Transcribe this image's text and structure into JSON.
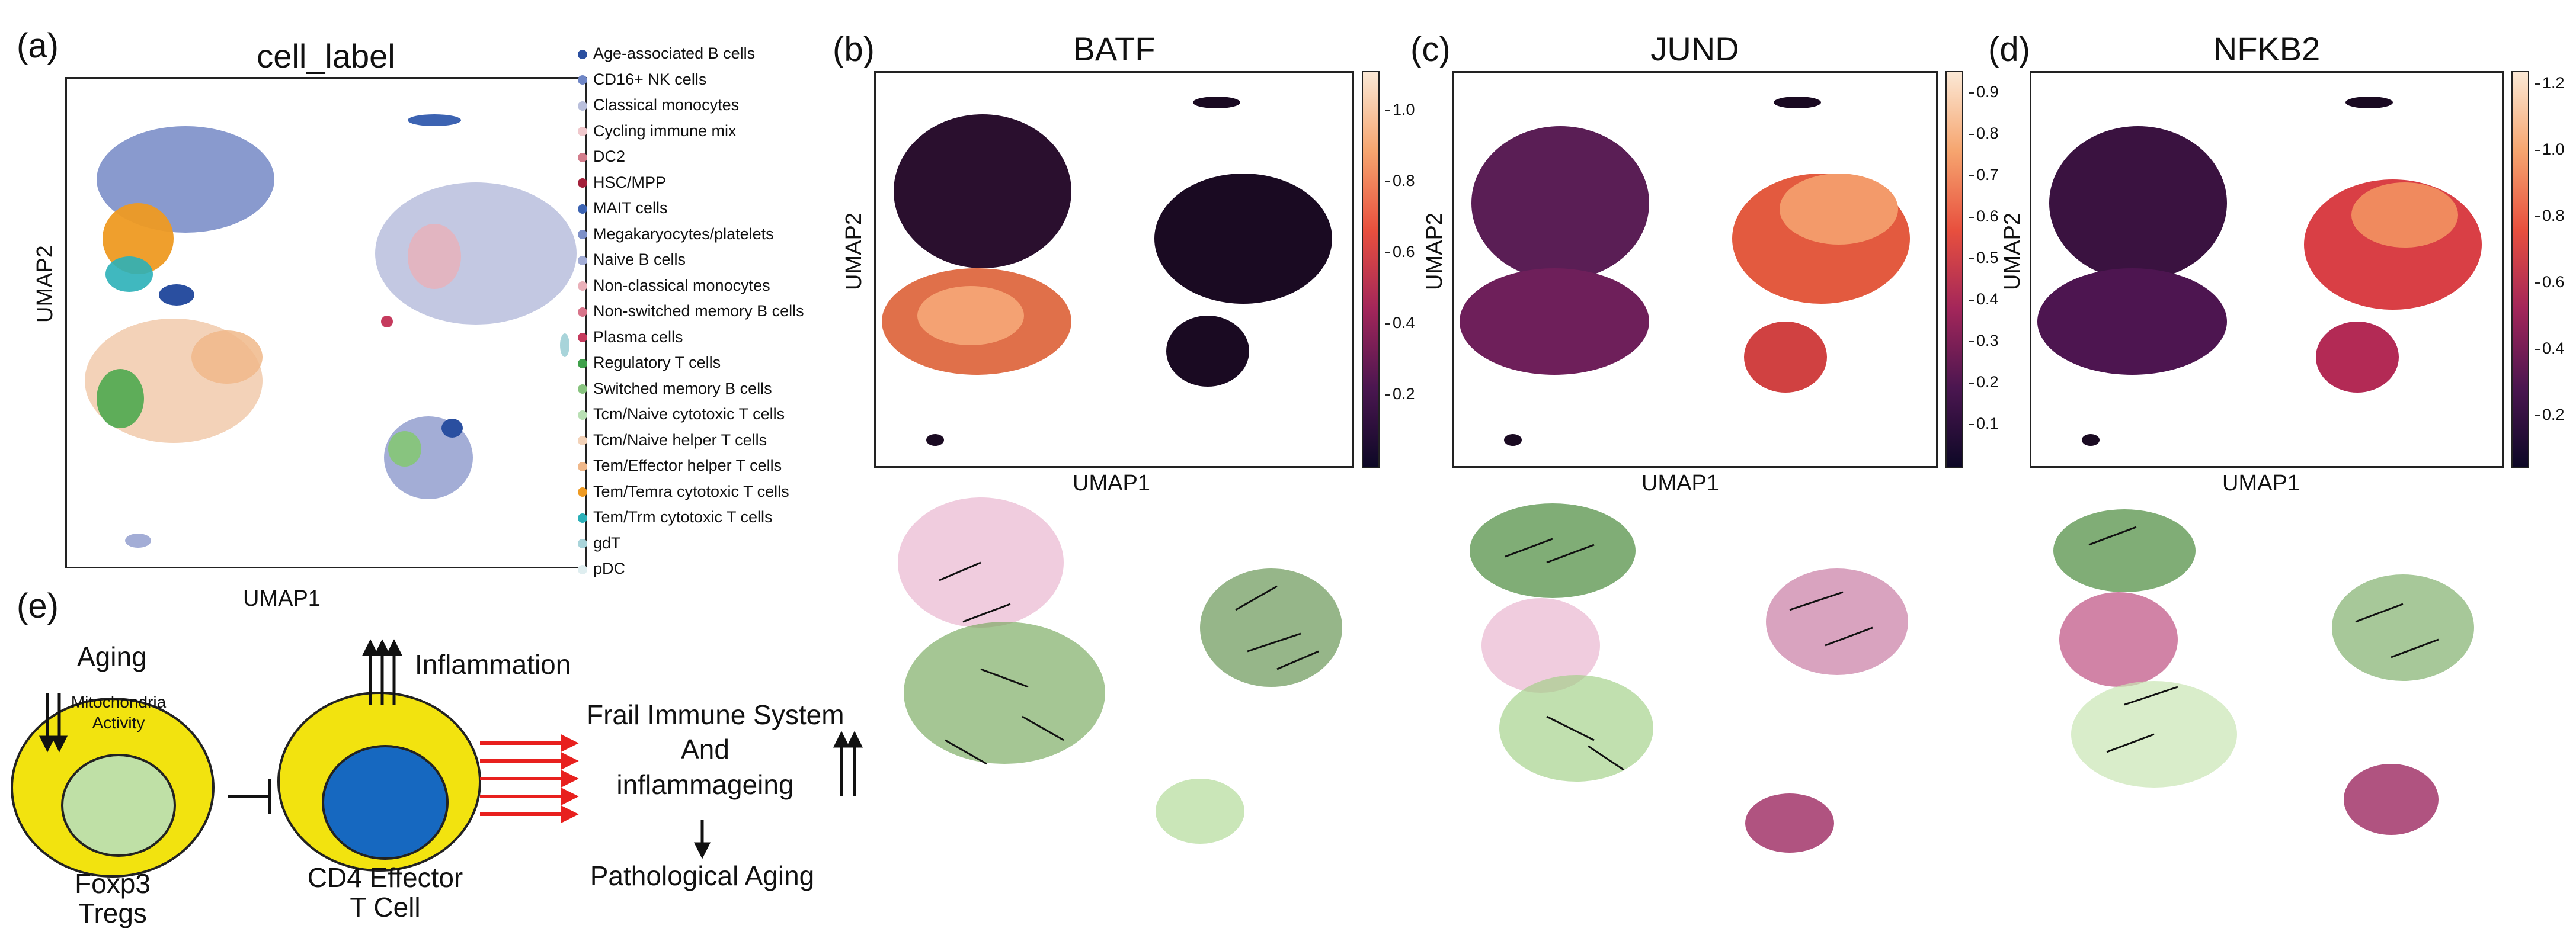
{
  "panel_a": {
    "label": "(a)",
    "title": "cell_label",
    "xlabel": "UMAP1",
    "ylabel": "UMAP2",
    "legend": [
      {
        "name": "Age-associated B cells",
        "color": "#2a4fa0"
      },
      {
        "name": "CD16+ NK cells",
        "color": "#6f86c6"
      },
      {
        "name": "Classical monocytes",
        "color": "#b9bfdc"
      },
      {
        "name": "Cycling immune mix",
        "color": "#f0c8cc"
      },
      {
        "name": "DC2",
        "color": "#d37d8c"
      },
      {
        "name": "HSC/MPP",
        "color": "#a3203a"
      },
      {
        "name": "MAIT cells",
        "color": "#3c63b2"
      },
      {
        "name": "Megakaryocytes/platelets",
        "color": "#7d90c8"
      },
      {
        "name": "Naive B cells",
        "color": "#a3add6"
      },
      {
        "name": "Non-classical monocytes",
        "color": "#eab0b9"
      },
      {
        "name": "Non-switched memory B cells",
        "color": "#d8748a"
      },
      {
        "name": "Plasma cells",
        "color": "#c53a5d"
      },
      {
        "name": "Regulatory T cells",
        "color": "#3ea04a"
      },
      {
        "name": "Switched memory B cells",
        "color": "#88c47f"
      },
      {
        "name": "Tcm/Naive cytotoxic T cells",
        "color": "#b9e0b4"
      },
      {
        "name": "Tcm/Naive helper T cells",
        "color": "#f3d2b8"
      },
      {
        "name": "Tem/Effector helper T cells",
        "color": "#f0b88a"
      },
      {
        "name": "Tem/Temra cytotoxic T cells",
        "color": "#ee9a22"
      },
      {
        "name": "Tem/Trm cytotoxic T cells",
        "color": "#2bb0b8"
      },
      {
        "name": "gdT",
        "color": "#a8d4da"
      },
      {
        "name": "pDC",
        "color": "#dfeef0"
      }
    ]
  },
  "panel_b": {
    "label": "(b)",
    "title": "BATF",
    "xlabel": "UMAP1",
    "ylabel": "UMAP2",
    "colorbar_ticks": [
      "1.0",
      "0.8",
      "0.6",
      "0.4",
      "0.2"
    ]
  },
  "panel_c": {
    "label": "(c)",
    "title": "JUND",
    "xlabel": "UMAP1",
    "ylabel": "UMAP2",
    "colorbar_ticks": [
      "0.9",
      "0.8",
      "0.7",
      "0.6",
      "0.5",
      "0.4",
      "0.3",
      "0.2",
      "0.1"
    ]
  },
  "panel_d": {
    "label": "(d)",
    "title": "NFKB2",
    "xlabel": "UMAP1",
    "ylabel": "UMAP2",
    "colorbar_ticks": [
      "1.2",
      "1.0",
      "0.8",
      "0.6",
      "0.4",
      "0.2"
    ]
  },
  "panel_e": {
    "label": "(e)",
    "aging": "Aging",
    "mito_line1": "Mitochondria",
    "mito_line2": "Activity",
    "treg_line1": "Foxp3",
    "treg_line2": "Tregs",
    "inflammation": "Inflammation",
    "effector_line1": "CD4 Effector",
    "effector_line2": "T Cell",
    "frail_line1": "Frail Immune System",
    "frail_line2": "And",
    "frail_line3": "inflammageing",
    "pathological": "Pathological Aging",
    "colors": {
      "cell_outer": "#f2e30f",
      "treg_core": "#bfe0a6",
      "effector_core": "#1668c0",
      "arrow_red": "#e8201e"
    }
  }
}
